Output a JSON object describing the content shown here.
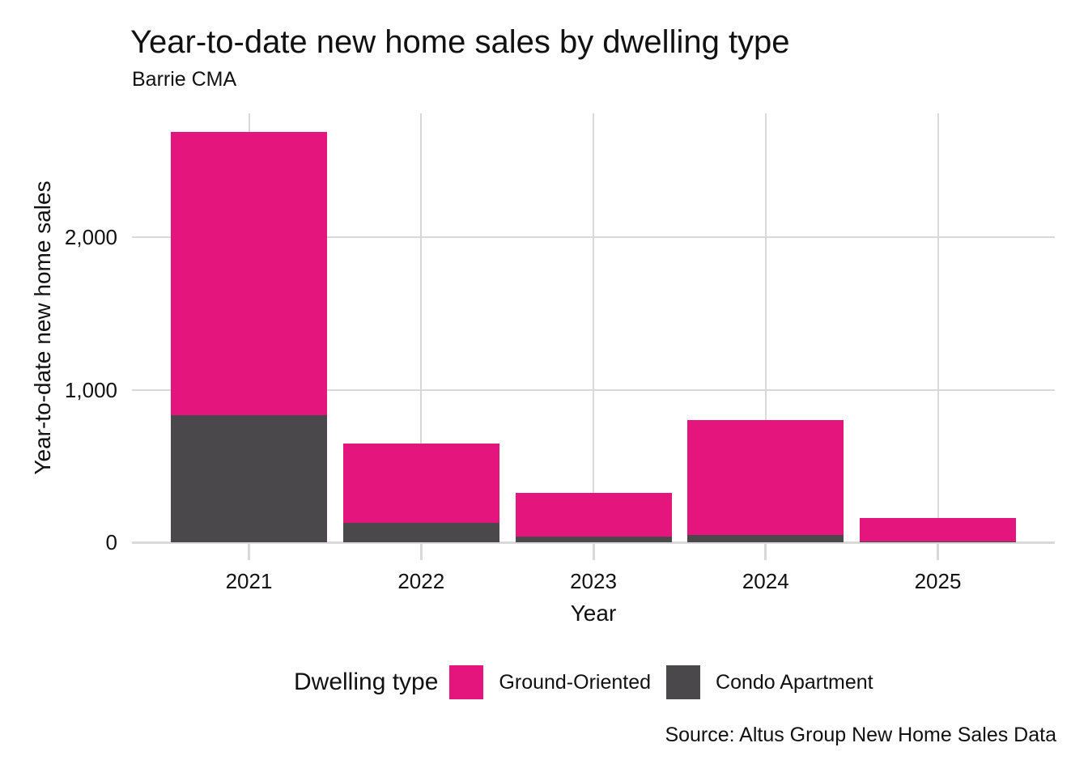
{
  "chart_data": {
    "type": "bar",
    "stacked": true,
    "title": "Year-to-date new home sales by dwelling type",
    "subtitle": "Barrie CMA",
    "xlabel": "Year",
    "ylabel": "Year-to-date new home sales",
    "source": "Source: Altus Group New Home Sales Data",
    "legend_title": "Dwelling type",
    "legend_position": "bottom",
    "categories": [
      "2021",
      "2022",
      "2023",
      "2024",
      "2025"
    ],
    "series": [
      {
        "name": "Ground-Oriented",
        "color": "#E4167D",
        "values": [
          1855,
          520,
          290,
          750,
          155
        ]
      },
      {
        "name": "Condo Apartment",
        "color": "#4A484A",
        "values": [
          835,
          130,
          35,
          50,
          5
        ]
      }
    ],
    "stack_bottom_to_top": [
      1,
      0
    ],
    "ylim": [
      0,
      2812
    ],
    "y_ticks": [
      {
        "value": 0,
        "label": "0"
      },
      {
        "value": 1000,
        "label": "1,000"
      },
      {
        "value": 2000,
        "label": "2,000"
      }
    ],
    "grid": true,
    "colors": {
      "gridline": "#D9D9D9",
      "text": "#111111",
      "background": "#FFFFFF"
    }
  }
}
